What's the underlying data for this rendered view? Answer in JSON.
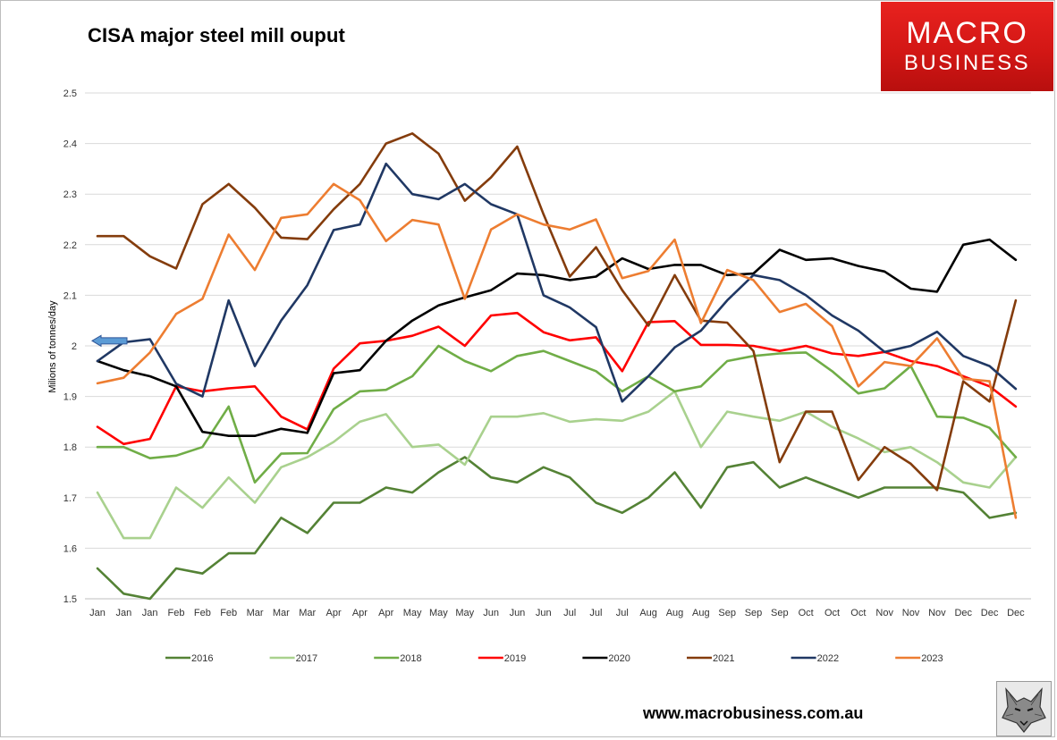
{
  "header": {
    "title": "CISA major steel mill ouput"
  },
  "logo": {
    "line1": "MACRO",
    "line2": "BUSINESS"
  },
  "footer": {
    "url": "www.macrobusiness.com.au",
    "badge_icon": "wolf-head-icon"
  },
  "chart_data": {
    "type": "line",
    "title": "CISA major steel mill ouput",
    "xlabel": "",
    "ylabel": "Milions of tonnes/day",
    "ylim": [
      1.5,
      2.5
    ],
    "yticks": [
      "1.5",
      "1.6",
      "1.7",
      "1.8",
      "1.9",
      "2",
      "2.1",
      "2.2",
      "2.3",
      "2.4",
      "2.5"
    ],
    "grid": true,
    "legend_position": "bottom",
    "annotation": {
      "type": "left-arrow",
      "value": 2.01,
      "color": "#5b9bd5"
    },
    "categories": [
      "Jan",
      "Jan",
      "Jan",
      "Feb",
      "Feb",
      "Feb",
      "Mar",
      "Mar",
      "Mar",
      "Apr",
      "Apr",
      "Apr",
      "May",
      "May",
      "May",
      "Jun",
      "Jun",
      "Jun",
      "Jul",
      "Jul",
      "Jul",
      "Aug",
      "Aug",
      "Aug",
      "Sep",
      "Sep",
      "Sep",
      "Oct",
      "Oct",
      "Oct",
      "Nov",
      "Nov",
      "Nov",
      "Dec",
      "Dec",
      "Dec"
    ],
    "series": [
      {
        "name": "2016",
        "color": "#548235",
        "values": [
          1.56,
          1.51,
          1.5,
          1.56,
          1.55,
          1.59,
          1.59,
          1.66,
          1.63,
          1.69,
          1.69,
          1.72,
          1.71,
          1.75,
          1.78,
          1.74,
          1.73,
          1.76,
          1.74,
          1.69,
          1.67,
          1.7,
          1.75,
          1.68,
          1.76,
          1.77,
          1.72,
          1.74,
          1.72,
          1.7,
          1.72,
          1.72,
          1.72,
          1.71,
          1.66,
          1.67
        ]
      },
      {
        "name": "2017",
        "color": "#a9d18e",
        "values": [
          1.71,
          1.62,
          1.62,
          1.72,
          1.68,
          1.74,
          1.69,
          1.76,
          1.78,
          1.81,
          1.85,
          1.865,
          1.8,
          1.805,
          1.765,
          1.86,
          1.86,
          1.867,
          1.85,
          1.855,
          1.852,
          1.87,
          1.91,
          1.8,
          1.87,
          1.86,
          1.852,
          1.87,
          1.84,
          1.817,
          1.79,
          1.8,
          1.77,
          1.73,
          1.72,
          1.78
        ]
      },
      {
        "name": "2018",
        "color": "#70ad47",
        "values": [
          1.8,
          1.8,
          1.778,
          1.783,
          1.8,
          1.88,
          1.73,
          1.787,
          1.788,
          1.875,
          1.91,
          1.913,
          1.94,
          2.0,
          1.97,
          1.95,
          1.98,
          1.99,
          1.97,
          1.95,
          1.91,
          1.94,
          1.91,
          1.92,
          1.97,
          1.98,
          1.985,
          1.987,
          1.95,
          1.906,
          1.916,
          1.96,
          1.86,
          1.858,
          1.838,
          1.78
        ]
      },
      {
        "name": "2019",
        "color": "#ff0000",
        "values": [
          1.84,
          1.806,
          1.816,
          1.92,
          1.91,
          1.916,
          1.92,
          1.86,
          1.835,
          1.955,
          2.005,
          2.01,
          2.02,
          2.038,
          2.0,
          2.06,
          2.065,
          2.027,
          2.011,
          2.017,
          1.95,
          2.047,
          2.049,
          2.002,
          2.002,
          2.0,
          1.99,
          2.0,
          1.985,
          1.98,
          1.988,
          1.97,
          1.96,
          1.94,
          1.92,
          1.88
        ]
      },
      {
        "name": "2020",
        "color": "#000000",
        "values": [
          1.97,
          1.952,
          1.94,
          1.92,
          1.83,
          1.822,
          1.822,
          1.836,
          1.828,
          1.946,
          1.952,
          2.01,
          2.05,
          2.08,
          2.096,
          2.11,
          2.143,
          2.14,
          2.13,
          2.137,
          2.173,
          2.152,
          2.16,
          2.16,
          2.14,
          2.143,
          2.19,
          2.17,
          2.173,
          2.158,
          2.147,
          2.113,
          2.107,
          2.2,
          2.21,
          2.17
        ]
      },
      {
        "name": "2021",
        "color": "#843c0c",
        "values": [
          2.217,
          2.217,
          2.177,
          2.153,
          2.28,
          2.32,
          2.273,
          2.214,
          2.211,
          2.27,
          2.32,
          2.4,
          2.42,
          2.38,
          2.287,
          2.333,
          2.394,
          2.26,
          2.137,
          2.195,
          2.11,
          2.04,
          2.14,
          2.05,
          2.046,
          1.99,
          1.77,
          1.87,
          1.87,
          1.735,
          1.8,
          1.767,
          1.715,
          1.93,
          1.89,
          2.09
        ]
      },
      {
        "name": "2022",
        "color": "#203864",
        "values": [
          1.97,
          2.007,
          2.013,
          1.925,
          1.9,
          2.09,
          1.96,
          2.05,
          2.12,
          2.229,
          2.24,
          2.36,
          2.3,
          2.29,
          2.32,
          2.28,
          2.26,
          2.1,
          2.076,
          2.037,
          1.89,
          1.94,
          1.997,
          2.03,
          2.09,
          2.14,
          2.13,
          2.1,
          2.06,
          2.03,
          1.988,
          2.0,
          2.028,
          1.98,
          1.96,
          1.915
        ]
      },
      {
        "name": "2023",
        "color": "#ed7d31",
        "values": [
          1.926,
          1.937,
          1.987,
          2.063,
          2.093,
          2.22,
          2.15,
          2.253,
          2.26,
          2.32,
          2.288,
          2.207,
          2.249,
          2.24,
          2.093,
          2.23,
          2.26,
          2.24,
          2.23,
          2.25,
          2.134,
          2.148,
          2.21,
          2.045,
          2.15,
          2.13,
          2.067,
          2.083,
          2.039,
          1.92,
          1.968,
          1.96,
          2.015,
          1.935,
          1.93,
          1.66
        ]
      }
    ]
  }
}
